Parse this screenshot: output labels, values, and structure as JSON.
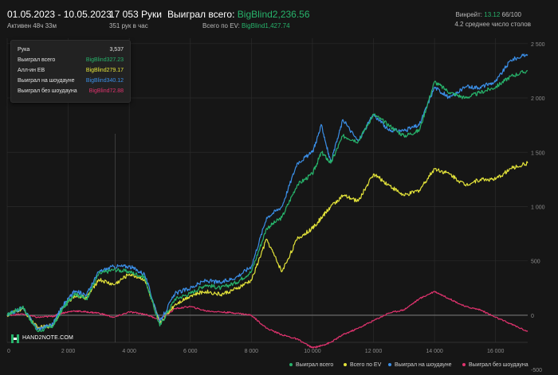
{
  "header": {
    "date_range": "01.05.2023 - 10.05.2023",
    "active_time": "Активен 48ч 33м",
    "hands": "17 053 Руки",
    "hands_per_hour": "351 рук в час",
    "won_total_label": "Выиграл всего:",
    "won_total_value": "BigBlind2,236.56",
    "ev_total_label": "Всего по EV:",
    "ev_total_value": "BigBlind1,427.74",
    "winrate_label": "Винрейт:",
    "winrate_value": "13.12",
    "winrate_sep": "66/100",
    "avg_tables": "4.2 среднее число столов"
  },
  "tooltip": {
    "hand_label": "Рука",
    "hand_value": "3,537",
    "rows": [
      {
        "label": "Выиграл всего",
        "value": "BigBlind327.23",
        "color": "#27b36b"
      },
      {
        "label": "Алл-ин EВ",
        "value": "BigBlind279.17",
        "color": "#e3e33a"
      },
      {
        "label": "Выиграл на шоудауне",
        "value": "BigBlind340.12",
        "color": "#3b8fe8"
      },
      {
        "label": "Выиграл без шоудауна",
        "value": "BigBlind72.88",
        "color": "#e0336e"
      }
    ]
  },
  "logo": {
    "text": "HAND2NOTE.COM"
  },
  "colors": {
    "total": "#27b36b",
    "ev": "#e3e33a",
    "showdown": "#3b8fe8",
    "non_showdown": "#e0336e",
    "background": "#161616",
    "grid": "#2b2b2b"
  },
  "legend": [
    {
      "label": "Выиграл всего",
      "color": "#27b36b"
    },
    {
      "label": "Всего по EV",
      "color": "#e3e33a"
    },
    {
      "label": "Выиграл на шоудауне",
      "color": "#3b8fe8"
    },
    {
      "label": "Выиграл без шоудауна",
      "color": "#e0336e"
    }
  ],
  "chart_data": {
    "type": "line",
    "xlim": [
      0,
      17053
    ],
    "ylim": [
      -250,
      2550
    ],
    "x_ticks": [
      "0",
      "2 000",
      "4 000",
      "6 000",
      "8 000",
      "10 000",
      "12 000",
      "14 000",
      "16 000"
    ],
    "x_tick_values": [
      0,
      2000,
      4000,
      6000,
      8000,
      10000,
      12000,
      14000,
      16000
    ],
    "y_ticks": [
      "-500",
      "0",
      "500",
      "1 000",
      "1 500",
      "2 000",
      "2 500"
    ],
    "y_tick_values": [
      -500,
      0,
      500,
      1000,
      1500,
      2000,
      2500
    ],
    "grid": true,
    "legend_position": "bottom-right",
    "series": [
      {
        "name": "Выиграл всего",
        "x": [
          0,
          500,
          1000,
          1500,
          1800,
          2200,
          2600,
          3000,
          3500,
          4000,
          4500,
          5000,
          5500,
          6000,
          6500,
          7000,
          7500,
          8000,
          8500,
          9000,
          9500,
          10000,
          10300,
          10600,
          11000,
          11500,
          12000,
          12500,
          13000,
          13500,
          14000,
          14500,
          15000,
          15500,
          16000,
          16500,
          17053
        ],
        "y": [
          0,
          80,
          -150,
          -100,
          50,
          200,
          150,
          380,
          420,
          400,
          350,
          -100,
          150,
          200,
          280,
          250,
          300,
          400,
          800,
          900,
          1200,
          1300,
          1500,
          1400,
          1650,
          1600,
          1850,
          1750,
          1650,
          1700,
          2150,
          2050,
          2000,
          2050,
          2100,
          2200,
          2250
        ]
      },
      {
        "name": "Всего по EV",
        "x": [
          0,
          500,
          1000,
          1500,
          1800,
          2200,
          2600,
          3000,
          3500,
          4000,
          4500,
          5000,
          5500,
          6000,
          6500,
          7000,
          7500,
          8000,
          8500,
          9000,
          9500,
          10000,
          10300,
          10600,
          11000,
          11500,
          12000,
          12500,
          13000,
          13500,
          14000,
          14500,
          15000,
          15500,
          16000,
          16500,
          17053
        ],
        "y": [
          0,
          60,
          -120,
          -90,
          60,
          180,
          160,
          330,
          280,
          380,
          330,
          -70,
          100,
          180,
          220,
          190,
          240,
          320,
          700,
          400,
          700,
          800,
          900,
          1000,
          1100,
          1050,
          1300,
          1200,
          1100,
          1150,
          1350,
          1300,
          1200,
          1250,
          1250,
          1350,
          1400
        ]
      },
      {
        "name": "Выиграл на шоудауне",
        "x": [
          0,
          500,
          1000,
          1500,
          1800,
          2200,
          2600,
          3000,
          3500,
          4000,
          4500,
          5000,
          5500,
          6000,
          6500,
          7000,
          7500,
          8000,
          8500,
          9000,
          9500,
          10000,
          10300,
          10600,
          11000,
          11500,
          12000,
          12500,
          13000,
          13500,
          14000,
          14500,
          15000,
          15500,
          16000,
          16500,
          17053
        ],
        "y": [
          0,
          70,
          -130,
          -80,
          80,
          220,
          190,
          400,
          450,
          450,
          380,
          -60,
          200,
          250,
          320,
          300,
          350,
          450,
          900,
          1000,
          1400,
          1500,
          1750,
          1400,
          1800,
          1600,
          1850,
          1700,
          1700,
          1750,
          2100,
          2000,
          2100,
          2100,
          2150,
          2350,
          2400
        ]
      },
      {
        "name": "Выиграл без шоудауна",
        "x": [
          0,
          500,
          1000,
          1500,
          1800,
          2200,
          2600,
          3000,
          3500,
          4000,
          4500,
          5000,
          5500,
          6000,
          6500,
          7000,
          7500,
          8000,
          8500,
          9000,
          9500,
          10000,
          10300,
          10600,
          11000,
          11500,
          12000,
          12500,
          13000,
          13500,
          14000,
          14500,
          15000,
          15500,
          16000,
          16500,
          17053
        ],
        "y": [
          0,
          10,
          -20,
          -10,
          20,
          40,
          30,
          20,
          -20,
          30,
          10,
          -40,
          60,
          80,
          40,
          30,
          20,
          0,
          -120,
          -180,
          -220,
          -300,
          -280,
          -250,
          -180,
          -120,
          -50,
          20,
          50,
          150,
          220,
          150,
          80,
          50,
          -20,
          -80,
          -150
        ]
      }
    ]
  }
}
